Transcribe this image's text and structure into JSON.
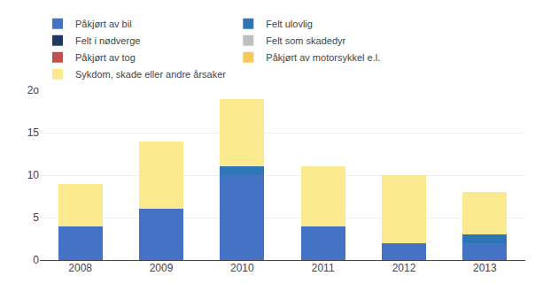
{
  "chart_data": {
    "type": "bar",
    "stacked": true,
    "categories": [
      "2008",
      "2009",
      "2010",
      "2011",
      "2012",
      "2013"
    ],
    "series": [
      {
        "name": "Påkjørt av bil",
        "color": "#4472C4",
        "values": [
          4.0,
          6.0,
          10.0,
          4.0,
          2.0,
          2.0
        ]
      },
      {
        "name": "Felt ulovlig",
        "color": "#2E75B6",
        "values": [
          0.0,
          0.0,
          1.0,
          0.0,
          0.0,
          1.0
        ]
      },
      {
        "name": "Felt i nødverge",
        "color": "#1F3864",
        "values": [
          0.0,
          0.0,
          0.0,
          0.0,
          0.0,
          0.0
        ]
      },
      {
        "name": "Felt som skadedyr",
        "color": "#BFBFBF",
        "values": [
          0.0,
          0.0,
          0.0,
          0.0,
          0.0,
          0.0
        ]
      },
      {
        "name": "Påkjørt av tog",
        "color": "#C0504D",
        "values": [
          0.0,
          0.0,
          0.0,
          0.0,
          0.0,
          0.0
        ]
      },
      {
        "name": "Påkjørt av motorsykkel e.l.",
        "color": "#FAC858",
        "values": [
          0.0,
          0.0,
          0.0,
          0.0,
          0.0,
          0.0
        ]
      },
      {
        "name": "Sykdom, skade eller andre årsaker",
        "color": "#FAE98E",
        "values": [
          5.0,
          8.0,
          8.0,
          7.0,
          8.0,
          5.0
        ]
      }
    ],
    "ylim": [
      0,
      20
    ],
    "yticks": [
      0,
      5,
      10,
      15,
      {
        "value": 20,
        "label": "2o"
      }
    ],
    "grid": true,
    "legend": "upper left"
  }
}
